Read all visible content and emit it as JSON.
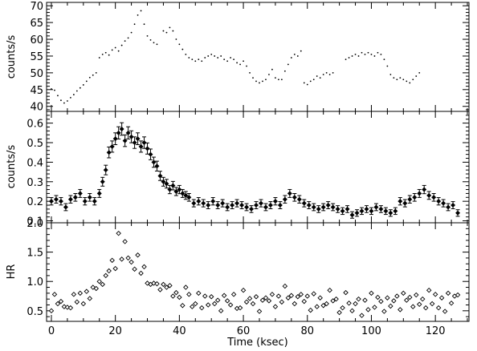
{
  "chart_data": [
    {
      "type": "scatter",
      "panel": "top",
      "ylabel": "counts/s",
      "ylim": [
        38.5,
        71
      ],
      "yticks": [
        "40",
        "45",
        "50",
        "55",
        "60",
        "65",
        "70"
      ],
      "segments": [
        {
          "x": [
            0,
            1,
            2,
            3,
            4,
            5,
            6,
            7,
            8,
            9,
            10,
            11,
            12,
            13,
            14
          ],
          "y": [
            45.2,
            44.8,
            43.2,
            41.8,
            41.0,
            41.6,
            42.6,
            43.5,
            44.6,
            45.5,
            46.4,
            47.5,
            48.6,
            49.3,
            50.0
          ]
        },
        {
          "x": [
            15,
            16,
            17,
            18,
            19,
            20,
            21,
            22,
            23,
            24,
            25,
            26,
            27,
            28,
            29,
            30,
            31,
            32,
            33
          ],
          "y": [
            54.5,
            55.5,
            56.0,
            55.3,
            56.8,
            57.5,
            56.5,
            58.2,
            59.5,
            60.4,
            62.0,
            64.5,
            67.2,
            68.5,
            64.5,
            61.0,
            59.8,
            59.0,
            58.5
          ]
        },
        {
          "x": [
            35,
            36,
            37,
            38,
            39,
            40,
            41,
            42,
            43,
            44,
            45,
            46,
            47,
            48,
            49,
            50,
            51,
            52,
            53,
            54,
            55,
            56,
            57,
            58,
            59,
            60,
            61,
            62,
            63,
            64,
            65,
            66,
            67,
            68,
            69,
            70,
            71,
            72,
            73,
            74,
            75,
            76,
            77,
            78
          ],
          "y": [
            62.5,
            62.0,
            63.5,
            62.5,
            60.0,
            58.5,
            57.0,
            55.5,
            54.5,
            54.0,
            53.5,
            54.0,
            53.5,
            54.5,
            55.0,
            55.5,
            55.0,
            54.5,
            55.0,
            54.0,
            53.5,
            54.5,
            54.0,
            53.0,
            52.5,
            53.5,
            52.0,
            50.0,
            48.5,
            47.5,
            47.0,
            47.5,
            48.0,
            49.5,
            51.0,
            48.5,
            48.0,
            48.0,
            50.5,
            52.5,
            54.5,
            55.5,
            55.0,
            56.5
          ]
        },
        {
          "x": [
            79,
            80,
            81,
            82,
            83,
            84,
            85,
            86,
            87,
            88
          ],
          "y": [
            47.0,
            46.5,
            47.5,
            48.0,
            49.0,
            48.5,
            49.5,
            50.0,
            49.5,
            50.0
          ]
        },
        {
          "x": [
            92,
            93,
            94,
            95,
            96,
            97,
            98,
            99,
            100,
            101,
            102,
            103,
            104,
            105,
            106,
            107,
            108,
            109,
            110,
            111,
            112,
            113,
            114,
            115
          ],
          "y": [
            54.0,
            54.5,
            55.0,
            55.5,
            55.0,
            56.0,
            55.5,
            56.0,
            55.5,
            55.0,
            56.0,
            55.5,
            54.0,
            52.0,
            49.5,
            48.5,
            48.0,
            48.5,
            48.0,
            47.5,
            47.0,
            48.0,
            49.0,
            50.0
          ]
        }
      ]
    },
    {
      "type": "scatter",
      "panel": "middle",
      "ylabel": "counts/s",
      "ylim": [
        0.09,
        0.66
      ],
      "yticks": [
        "0.1",
        "0.2",
        "0.3",
        "0.4",
        "0.5",
        "0.6"
      ],
      "x": [
        0,
        1.5,
        3,
        4.5,
        6,
        7.5,
        9,
        10.5,
        12,
        13.5,
        15,
        16,
        17,
        18,
        19,
        20,
        21,
        22,
        23,
        24,
        25,
        26,
        27,
        28,
        29,
        30,
        31,
        32,
        33,
        34,
        35,
        36,
        37,
        38,
        39,
        40,
        41,
        42,
        43,
        44.5,
        46,
        47.5,
        49,
        50.5,
        52,
        53.5,
        55,
        56.5,
        58,
        59.5,
        61,
        62.5,
        64,
        65.5,
        67,
        68.5,
        70,
        71.5,
        73,
        74.5,
        76,
        77.5,
        79,
        80.5,
        82,
        83.5,
        85,
        86.5,
        88,
        89.5,
        91,
        92.5,
        94,
        95.5,
        97,
        98.5,
        100,
        101.5,
        103,
        104.5,
        106,
        107.5,
        109,
        110.5,
        112,
        113.5,
        115,
        116.5,
        118,
        119.5,
        121,
        122.5,
        124,
        125.5,
        127
      ],
      "y": [
        0.2,
        0.21,
        0.2,
        0.17,
        0.21,
        0.22,
        0.24,
        0.2,
        0.22,
        0.2,
        0.24,
        0.3,
        0.36,
        0.45,
        0.48,
        0.52,
        0.55,
        0.57,
        0.51,
        0.55,
        0.53,
        0.5,
        0.52,
        0.48,
        0.5,
        0.47,
        0.44,
        0.4,
        0.38,
        0.33,
        0.3,
        0.29,
        0.26,
        0.28,
        0.25,
        0.26,
        0.24,
        0.23,
        0.22,
        0.19,
        0.2,
        0.19,
        0.18,
        0.2,
        0.18,
        0.19,
        0.17,
        0.18,
        0.19,
        0.18,
        0.17,
        0.16,
        0.18,
        0.19,
        0.17,
        0.18,
        0.2,
        0.18,
        0.21,
        0.24,
        0.22,
        0.21,
        0.19,
        0.18,
        0.17,
        0.16,
        0.17,
        0.18,
        0.17,
        0.16,
        0.15,
        0.16,
        0.13,
        0.14,
        0.15,
        0.16,
        0.15,
        0.17,
        0.16,
        0.15,
        0.14,
        0.15,
        0.2,
        0.19,
        0.21,
        0.22,
        0.24,
        0.26,
        0.23,
        0.22,
        0.2,
        0.19,
        0.17,
        0.18,
        0.14
      ]
    },
    {
      "type": "scatter",
      "panel": "bottom",
      "ylabel": "HR",
      "xlabel": "Time (ksec)",
      "ylim": [
        0.32,
        2.0
      ],
      "xlim": [
        -1.5,
        130.5
      ],
      "yticks": [
        "0.5",
        "1.0",
        "1.5",
        "2.0"
      ],
      "xticks": [
        "0",
        "20",
        "40",
        "60",
        "80",
        "100",
        "120"
      ],
      "x": [
        0,
        1,
        2,
        3,
        4,
        5,
        6,
        7,
        8,
        9,
        10,
        11,
        12,
        13,
        14,
        15,
        16,
        17,
        18,
        19,
        20,
        21,
        22,
        23,
        24,
        25,
        26,
        27,
        28,
        29,
        30,
        31,
        32,
        33,
        34,
        35,
        36,
        37,
        38,
        39,
        40,
        41,
        42,
        43,
        44,
        45,
        46,
        47,
        48,
        49,
        50,
        51,
        52,
        53,
        54,
        55,
        56,
        57,
        58,
        59,
        60,
        61,
        62,
        63,
        64,
        65,
        66,
        67,
        68,
        69,
        70,
        71,
        72,
        73,
        74,
        75,
        76,
        77,
        78,
        79,
        80,
        81,
        82,
        83,
        84,
        85,
        86,
        87,
        88,
        89,
        90,
        91,
        92,
        93,
        94,
        95,
        96,
        97,
        98,
        99,
        100,
        101,
        102,
        103,
        104,
        105,
        106,
        107,
        108,
        109,
        110,
        111,
        112,
        113,
        114,
        115,
        116,
        117,
        118,
        119,
        120,
        121,
        122,
        123,
        124,
        125,
        126,
        127
      ],
      "y": [
        0.5,
        0.78,
        0.62,
        0.66,
        0.57,
        0.56,
        0.55,
        0.78,
        0.65,
        0.8,
        0.62,
        0.83,
        0.71,
        0.9,
        0.88,
        1.0,
        0.95,
        1.1,
        1.18,
        1.36,
        1.22,
        1.82,
        1.38,
        1.68,
        1.4,
        1.33,
        1.21,
        1.45,
        1.14,
        1.25,
        0.97,
        0.95,
        0.97,
        0.96,
        0.86,
        0.95,
        0.9,
        0.93,
        0.75,
        0.81,
        0.73,
        0.59,
        0.9,
        0.78,
        0.57,
        0.62,
        0.8,
        0.55,
        0.75,
        0.6,
        0.74,
        0.62,
        0.68,
        0.5,
        0.76,
        0.67,
        0.6,
        0.78,
        0.54,
        0.55,
        0.85,
        0.65,
        0.71,
        0.62,
        0.74,
        0.49,
        0.68,
        0.72,
        0.67,
        0.78,
        0.57,
        0.75,
        0.65,
        0.92,
        0.72,
        0.76,
        0.62,
        0.74,
        0.78,
        0.66,
        0.75,
        0.51,
        0.79,
        0.57,
        0.72,
        0.59,
        0.62,
        0.85,
        0.67,
        0.7,
        0.47,
        0.55,
        0.81,
        0.63,
        0.5,
        0.62,
        0.7,
        0.42,
        0.68,
        0.52,
        0.8,
        0.56,
        0.73,
        0.66,
        0.49,
        0.72,
        0.58,
        0.67,
        0.75,
        0.52,
        0.8,
        0.68,
        0.73,
        0.57,
        0.77,
        0.61,
        0.7,
        0.55,
        0.85,
        0.62,
        0.78,
        0.55,
        0.72,
        0.49,
        0.8,
        0.63,
        0.75,
        0.77
      ]
    }
  ]
}
